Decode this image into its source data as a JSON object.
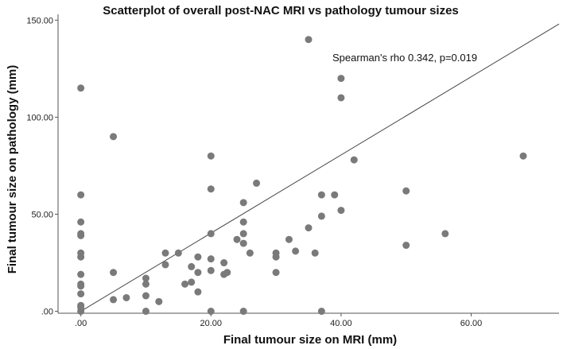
{
  "chart_data": {
    "type": "scatter",
    "title": "Scatterplot of overall post-NAC MRI vs pathology tumour sizes",
    "xlabel": "Final tumour size on MRI (mm)",
    "ylabel": "Final tumour size on pathology (mm)",
    "xlim": [
      -3.5,
      73.5
    ],
    "ylim": [
      -1,
      153
    ],
    "x_ticks": [
      0,
      20,
      40,
      60
    ],
    "x_tick_labels": [
      ".00",
      "20.00",
      "40.00",
      "60.00"
    ],
    "y_ticks": [
      0,
      50,
      100,
      150
    ],
    "y_tick_labels": [
      ".00",
      "50.00",
      "100.00",
      "150.00"
    ],
    "grid": false,
    "legend": "none",
    "annotation": "Spearman's rho 0.342, p=0.019",
    "fit_line": {
      "x": [
        0,
        73.5
      ],
      "y": [
        0,
        148
      ]
    },
    "marker_color": "#7a7a7a",
    "line_color": "#444444",
    "points": [
      [
        0,
        115
      ],
      [
        0,
        60
      ],
      [
        0,
        46
      ],
      [
        0,
        40
      ],
      [
        0,
        39
      ],
      [
        0,
        30
      ],
      [
        0,
        28
      ],
      [
        0,
        19
      ],
      [
        0,
        14
      ],
      [
        0,
        13
      ],
      [
        0,
        9
      ],
      [
        0,
        3
      ],
      [
        0,
        2
      ],
      [
        0,
        0
      ],
      [
        5,
        90
      ],
      [
        5,
        20
      ],
      [
        5,
        6
      ],
      [
        7,
        7
      ],
      [
        10,
        17
      ],
      [
        10,
        14
      ],
      [
        10,
        8
      ],
      [
        10,
        0
      ],
      [
        12,
        5
      ],
      [
        13,
        30
      ],
      [
        13,
        24
      ],
      [
        15,
        30
      ],
      [
        16,
        14
      ],
      [
        17,
        23
      ],
      [
        17,
        15
      ],
      [
        18,
        28
      ],
      [
        18,
        20
      ],
      [
        18,
        10
      ],
      [
        20,
        80
      ],
      [
        20,
        63
      ],
      [
        20,
        40
      ],
      [
        20,
        27
      ],
      [
        20,
        21
      ],
      [
        20,
        0
      ],
      [
        22,
        25
      ],
      [
        22,
        19
      ],
      [
        22.5,
        20
      ],
      [
        24,
        37
      ],
      [
        25,
        56
      ],
      [
        25,
        46
      ],
      [
        25,
        40
      ],
      [
        25,
        35
      ],
      [
        25,
        0
      ],
      [
        26,
        30
      ],
      [
        27,
        66
      ],
      [
        30,
        30
      ],
      [
        30,
        28
      ],
      [
        30,
        20
      ],
      [
        32,
        37
      ],
      [
        33,
        31
      ],
      [
        35,
        140
      ],
      [
        35,
        43
      ],
      [
        36,
        30
      ],
      [
        37,
        60
      ],
      [
        37,
        49
      ],
      [
        37,
        0
      ],
      [
        39,
        60
      ],
      [
        40,
        120
      ],
      [
        40,
        110
      ],
      [
        40,
        52
      ],
      [
        42,
        78
      ],
      [
        50,
        62
      ],
      [
        50,
        34
      ],
      [
        56,
        40
      ],
      [
        68,
        80
      ]
    ]
  }
}
